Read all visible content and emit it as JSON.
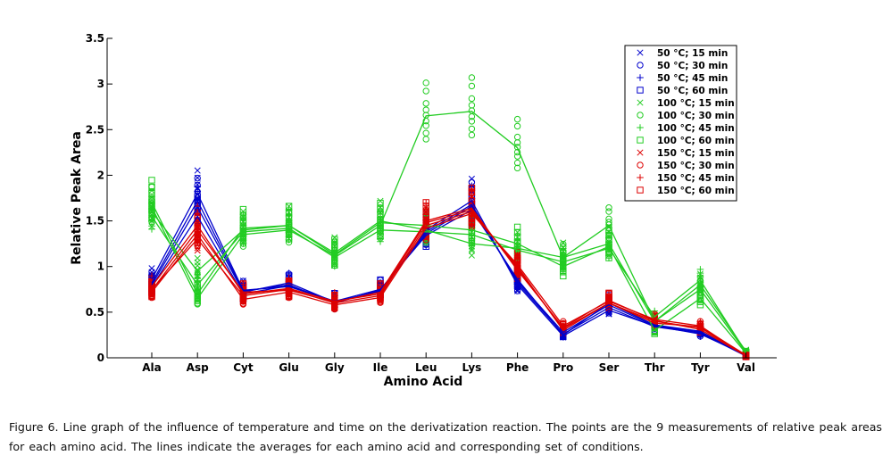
{
  "chart_data": {
    "type": "line",
    "xlabel": "Amino Acid",
    "ylabel": "Relative Peak Area",
    "categories": [
      "Ala",
      "Asp",
      "Cyt",
      "Glu",
      "Gly",
      "Ile",
      "Leu",
      "Lys",
      "Phe",
      "Pro",
      "Ser",
      "Thr",
      "Tyr",
      "Val"
    ],
    "ylim": [
      0,
      3.5
    ],
    "yticks": [
      "0",
      "0.5",
      "1",
      "1.5",
      "2",
      "2.5",
      "3",
      "3.5"
    ],
    "legend_position": "top-right",
    "grid": false,
    "colors": {
      "blue": "#0000cc",
      "green": "#22cc22",
      "red": "#dd0000"
    },
    "series": [
      {
        "name": "50 °C; 15 min",
        "color": "#0000cc",
        "marker": "x",
        "values": [
          0.86,
          1.8,
          0.74,
          0.78,
          0.62,
          0.72,
          1.4,
          1.72,
          0.8,
          0.24,
          0.52,
          0.35,
          0.28,
          0.03
        ]
      },
      {
        "name": "50 °C; 30 min",
        "color": "#0000cc",
        "marker": "circle",
        "values": [
          0.82,
          1.72,
          0.73,
          0.8,
          0.6,
          0.74,
          1.38,
          1.68,
          0.82,
          0.26,
          0.55,
          0.34,
          0.27,
          0.02
        ]
      },
      {
        "name": "50 °C; 45 min",
        "color": "#0000cc",
        "marker": "plus",
        "values": [
          0.8,
          1.65,
          0.72,
          0.82,
          0.61,
          0.73,
          1.36,
          1.66,
          0.84,
          0.28,
          0.58,
          0.35,
          0.26,
          0.03
        ]
      },
      {
        "name": "50 °C; 60 min",
        "color": "#0000cc",
        "marker": "square",
        "values": [
          0.78,
          1.55,
          0.7,
          0.79,
          0.62,
          0.75,
          1.34,
          1.62,
          0.86,
          0.25,
          0.6,
          0.36,
          0.29,
          0.02
        ]
      },
      {
        "name": "100 °C; 15 min",
        "color": "#22cc22",
        "marker": "x",
        "values": [
          1.6,
          0.95,
          1.4,
          1.45,
          1.15,
          1.5,
          1.4,
          1.25,
          1.2,
          1.1,
          1.25,
          0.4,
          0.8,
          0.07
        ]
      },
      {
        "name": "100 °C; 30 min",
        "color": "#22cc22",
        "marker": "circle",
        "values": [
          1.65,
          0.65,
          1.35,
          1.4,
          1.12,
          1.45,
          2.65,
          2.7,
          2.3,
          1.1,
          1.45,
          0.4,
          0.75,
          0.06
        ]
      },
      {
        "name": "100 °C; 45 min",
        "color": "#22cc22",
        "marker": "plus",
        "values": [
          1.55,
          0.8,
          1.38,
          1.42,
          1.1,
          1.4,
          1.38,
          1.35,
          1.18,
          1.05,
          1.2,
          0.45,
          0.85,
          0.06
        ]
      },
      {
        "name": "100 °C; 60 min",
        "color": "#22cc22",
        "marker": "square",
        "values": [
          1.7,
          0.7,
          1.42,
          1.45,
          1.13,
          1.48,
          1.45,
          1.4,
          1.25,
          1.0,
          1.22,
          0.3,
          0.65,
          0.05
        ]
      },
      {
        "name": "150 °C; 15 min",
        "color": "#dd0000",
        "marker": "x",
        "values": [
          0.75,
          1.3,
          0.68,
          0.75,
          0.6,
          0.68,
          1.45,
          1.6,
          1.0,
          0.3,
          0.6,
          0.4,
          0.33,
          0.02
        ]
      },
      {
        "name": "150 °C; 30 min",
        "color": "#dd0000",
        "marker": "circle",
        "values": [
          0.72,
          1.35,
          0.64,
          0.72,
          0.58,
          0.66,
          1.42,
          1.58,
          1.02,
          0.35,
          0.62,
          0.42,
          0.35,
          0.02
        ]
      },
      {
        "name": "150 °C; 45 min",
        "color": "#dd0000",
        "marker": "plus",
        "values": [
          0.78,
          1.45,
          0.7,
          0.76,
          0.62,
          0.7,
          1.48,
          1.62,
          0.98,
          0.32,
          0.6,
          0.38,
          0.34,
          0.03
        ]
      },
      {
        "name": "150 °C; 60 min",
        "color": "#dd0000",
        "marker": "square",
        "values": [
          0.74,
          1.4,
          0.72,
          0.74,
          0.61,
          0.72,
          1.5,
          1.64,
          0.96,
          0.33,
          0.63,
          0.41,
          0.31,
          0.02
        ]
      }
    ]
  },
  "caption": "Figure 6. Line graph of the influence of temperature and time on the derivatization reaction.  The points are the 9 measurements of relative peak areas for each amino acid.  The lines indicate the averages for each amino acid and corresponding set of conditions."
}
